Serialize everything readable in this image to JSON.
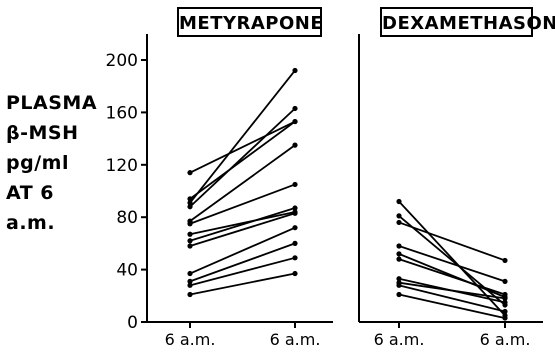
{
  "ylabel_lines": [
    "PLASMA",
    "β-MSH",
    "pg/ml",
    "AT 6 a.m."
  ],
  "chart_data": [
    {
      "type": "line",
      "title": "METYRAPONE",
      "categories": [
        "6 a.m.",
        "6 a.m."
      ],
      "ylim": [
        0,
        200
      ],
      "yticks": [
        0,
        40,
        80,
        120,
        160,
        200
      ],
      "series": [
        {
          "values": [
            114,
            153
          ]
        },
        {
          "values": [
            94,
            153
          ]
        },
        {
          "values": [
            91,
            192
          ]
        },
        {
          "values": [
            88,
            163
          ]
        },
        {
          "values": [
            77,
            135
          ]
        },
        {
          "values": [
            75,
            105
          ]
        },
        {
          "values": [
            67,
            84
          ]
        },
        {
          "values": [
            62,
            87
          ]
        },
        {
          "values": [
            58,
            83
          ]
        },
        {
          "values": [
            37,
            72
          ]
        },
        {
          "values": [
            31,
            60
          ]
        },
        {
          "values": [
            28,
            49
          ]
        },
        {
          "values": [
            21,
            37
          ]
        }
      ]
    },
    {
      "type": "line",
      "title": "DEXAMETHASONE",
      "categories": [
        "6 a.m.",
        "6 a.m."
      ],
      "ylim": [
        0,
        200
      ],
      "yticks": [
        0,
        40,
        80,
        120,
        160,
        200
      ],
      "series": [
        {
          "values": [
            92,
            5
          ]
        },
        {
          "values": [
            81,
            13
          ]
        },
        {
          "values": [
            76,
            47
          ]
        },
        {
          "values": [
            58,
            31
          ]
        },
        {
          "values": [
            52,
            19
          ]
        },
        {
          "values": [
            48,
            21
          ]
        },
        {
          "values": [
            33,
            15
          ]
        },
        {
          "values": [
            30,
            18
          ]
        },
        {
          "values": [
            28,
            8
          ]
        },
        {
          "values": [
            21,
            3
          ]
        }
      ]
    }
  ]
}
